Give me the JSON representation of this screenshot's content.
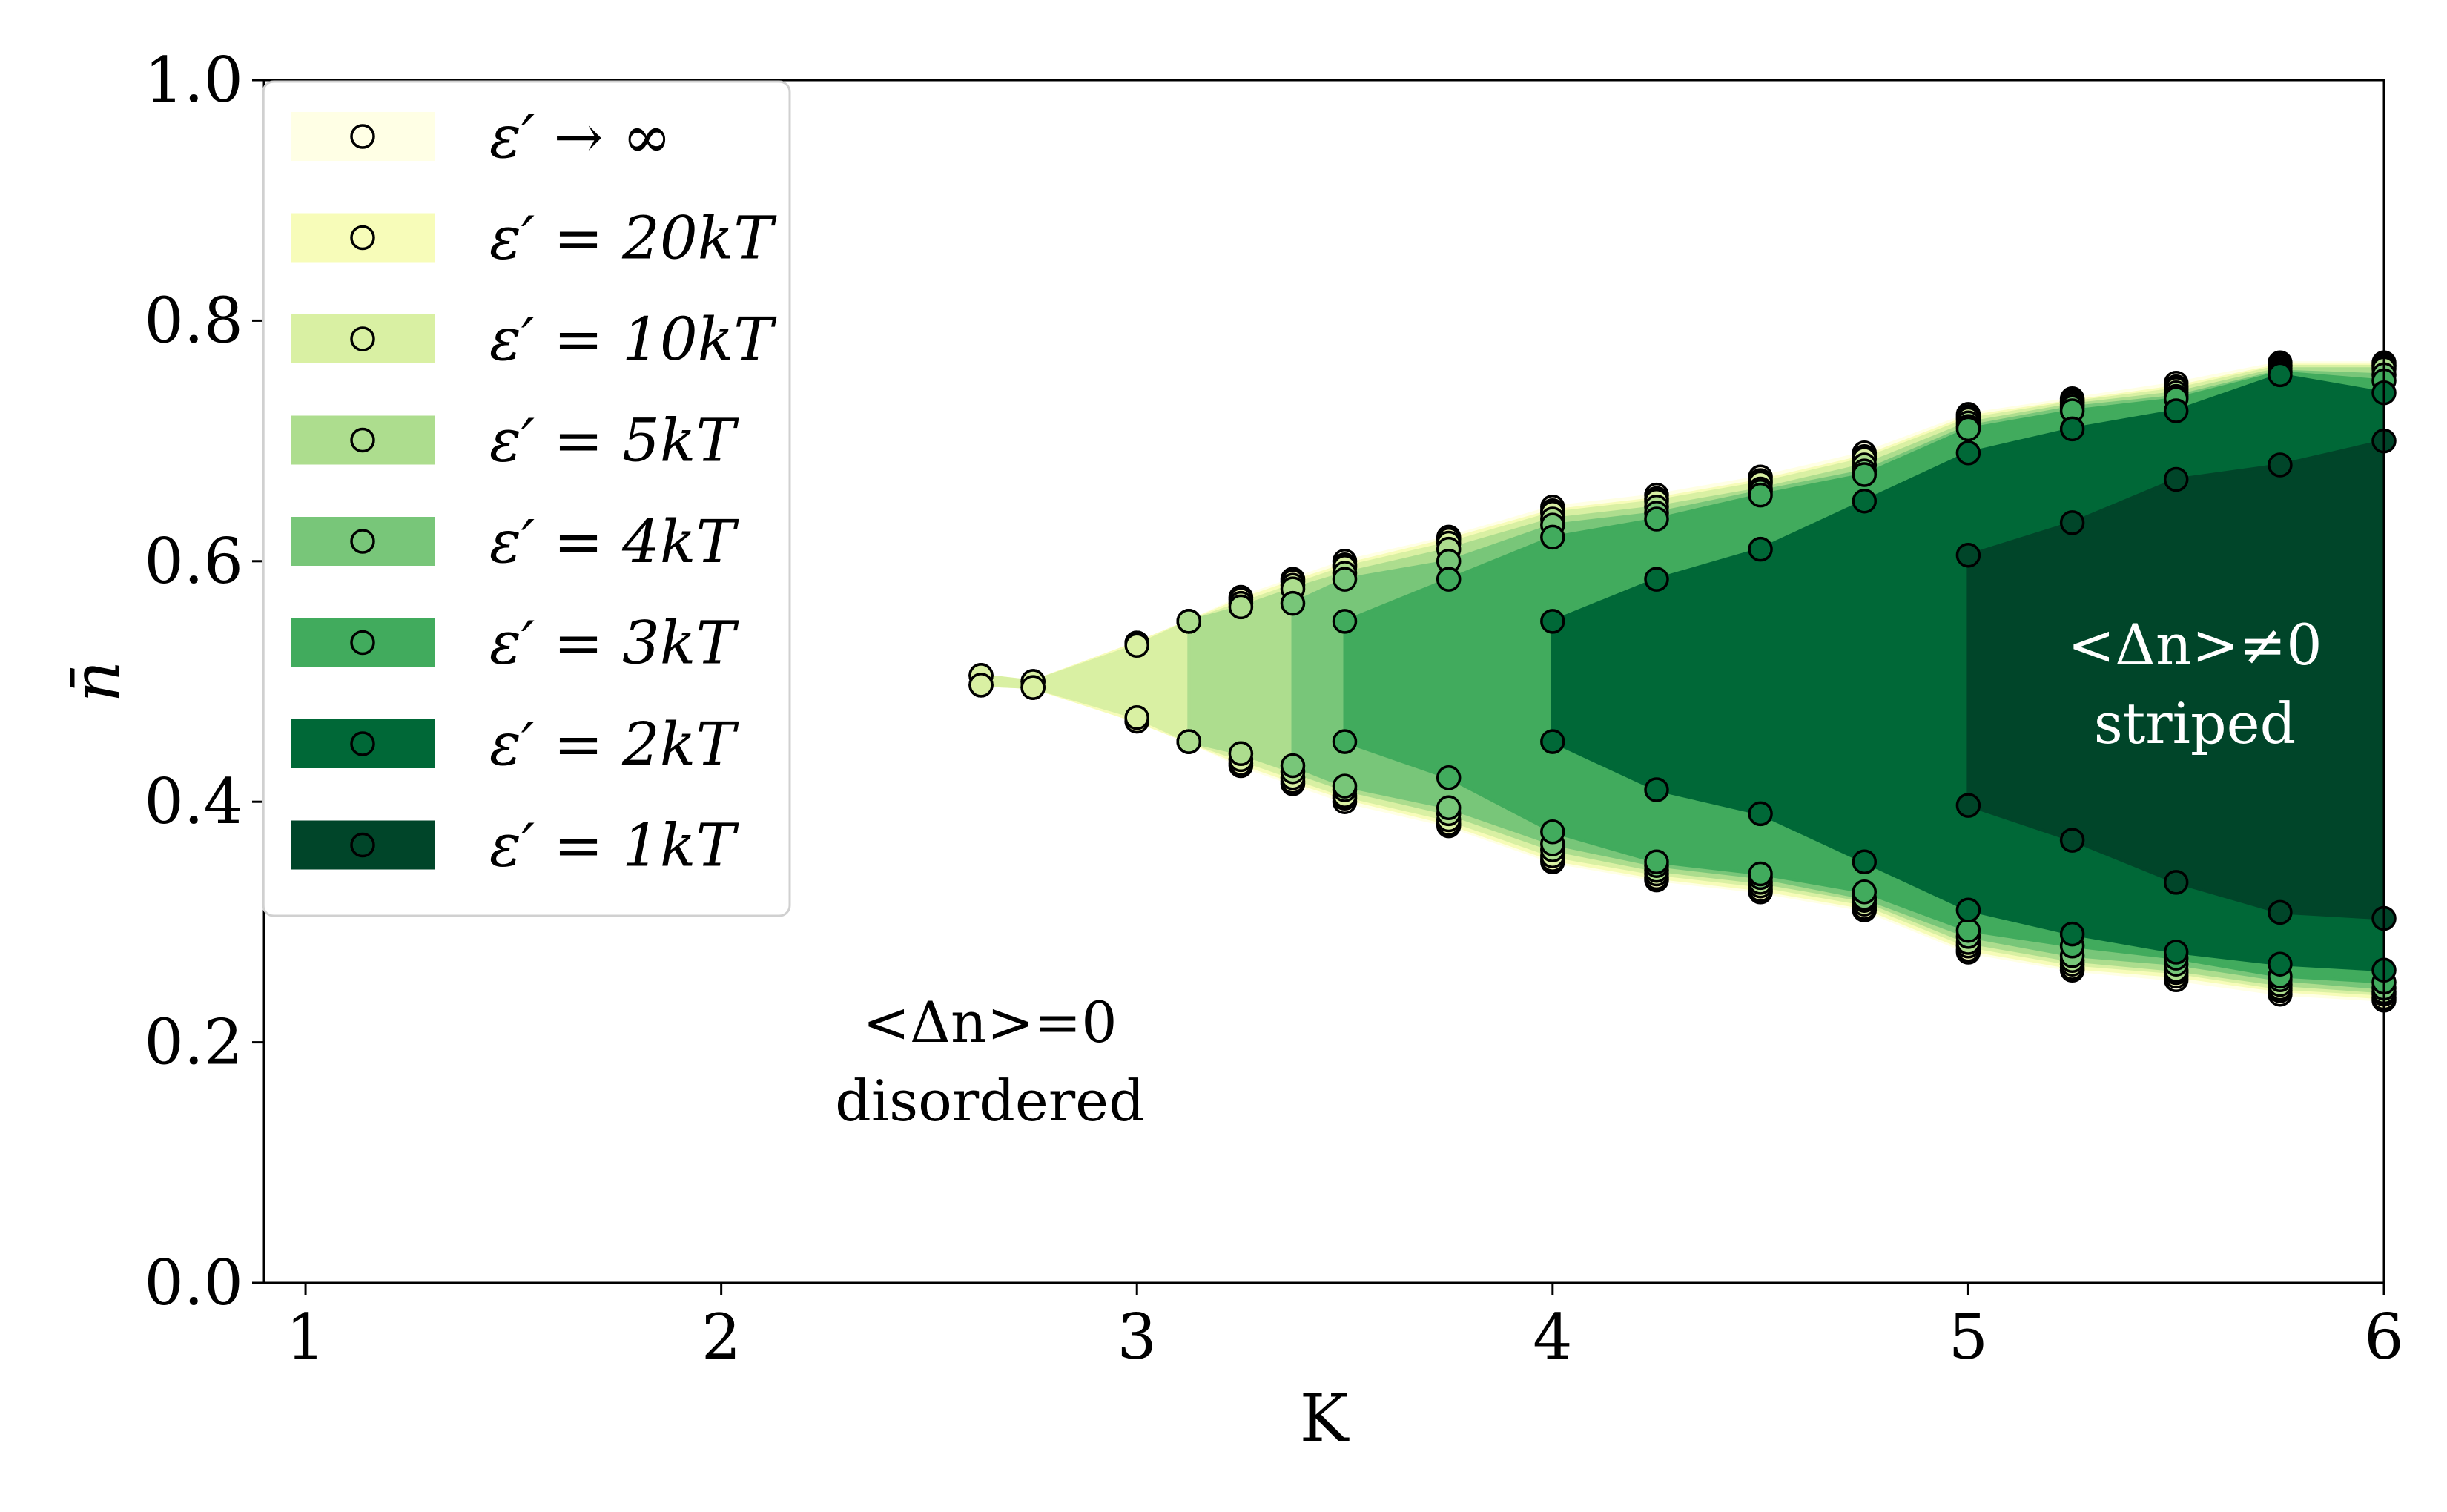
{
  "chart_data": {
    "type": "area",
    "xlabel": "K",
    "ylabel": "n̄",
    "xlim": [
      0.9,
      6
    ],
    "ylim": [
      0,
      1
    ],
    "xticks": [
      "1",
      "2",
      "3",
      "4",
      "5",
      "6"
    ],
    "yticks": [
      "0.0",
      "0.2",
      "0.4",
      "0.6",
      "0.8",
      "1.0"
    ],
    "legend_position": "upper-left",
    "grid": false,
    "annotations": [
      {
        "id": "disordered",
        "lines": [
          "<Δn>=0",
          "disordered"
        ],
        "color": "#000000"
      },
      {
        "id": "striped",
        "lines": [
          "<Δn>≠0",
          "striped"
        ],
        "color": "#ffffff"
      }
    ],
    "series": [
      {
        "name": "ε′ → ∞",
        "color": "#ffffe5",
        "upper": [
          [
            2.625,
            0.505
          ],
          [
            2.75,
            0.5
          ],
          [
            3,
            0.532
          ],
          [
            3.125,
            0.55
          ],
          [
            3.25,
            0.57
          ],
          [
            3.375,
            0.585
          ],
          [
            3.5,
            0.6
          ],
          [
            3.75,
            0.62
          ],
          [
            4,
            0.645
          ],
          [
            4.25,
            0.655
          ],
          [
            4.5,
            0.67
          ],
          [
            4.75,
            0.69
          ],
          [
            5,
            0.722
          ],
          [
            5.25,
            0.735
          ],
          [
            5.5,
            0.748
          ],
          [
            5.75,
            0.765
          ],
          [
            6,
            0.765
          ]
        ],
        "lower": [
          [
            6,
            0.235
          ],
          [
            5.75,
            0.24
          ],
          [
            5.5,
            0.252
          ],
          [
            5.25,
            0.26
          ],
          [
            5,
            0.275
          ],
          [
            4.75,
            0.31
          ],
          [
            4.5,
            0.325
          ],
          [
            4.25,
            0.335
          ],
          [
            4,
            0.35
          ],
          [
            3.75,
            0.38
          ],
          [
            3.5,
            0.4
          ],
          [
            3.375,
            0.415
          ],
          [
            3.25,
            0.43
          ],
          [
            3.125,
            0.45
          ],
          [
            3,
            0.467
          ],
          [
            2.75,
            0.495
          ],
          [
            2.625,
            0.497
          ]
        ]
      },
      {
        "name": "ε′ = 20kT",
        "color": "#f7fcb9",
        "upper": [
          [
            2.625,
            0.505
          ],
          [
            2.75,
            0.5
          ],
          [
            3,
            0.532
          ],
          [
            3.125,
            0.55
          ],
          [
            3.25,
            0.568
          ],
          [
            3.375,
            0.583
          ],
          [
            3.5,
            0.597
          ],
          [
            3.75,
            0.618
          ],
          [
            4,
            0.642
          ],
          [
            4.25,
            0.652
          ],
          [
            4.5,
            0.667
          ],
          [
            4.75,
            0.687
          ],
          [
            5,
            0.72
          ],
          [
            5.25,
            0.733
          ],
          [
            5.5,
            0.745
          ],
          [
            5.75,
            0.763
          ],
          [
            6,
            0.763
          ]
        ],
        "lower": [
          [
            6,
            0.237
          ],
          [
            5.75,
            0.243
          ],
          [
            5.5,
            0.255
          ],
          [
            5.25,
            0.262
          ],
          [
            5,
            0.277
          ],
          [
            4.75,
            0.312
          ],
          [
            4.5,
            0.327
          ],
          [
            4.25,
            0.337
          ],
          [
            4,
            0.352
          ],
          [
            3.75,
            0.382
          ],
          [
            3.5,
            0.403
          ],
          [
            3.375,
            0.417
          ],
          [
            3.25,
            0.432
          ],
          [
            3.125,
            0.45
          ],
          [
            3,
            0.467
          ],
          [
            2.75,
            0.495
          ],
          [
            2.625,
            0.497
          ]
        ]
      },
      {
        "name": "ε′ = 10kT",
        "color": "#d9f0a3",
        "upper": [
          [
            2.625,
            0.505
          ],
          [
            2.75,
            0.5
          ],
          [
            3,
            0.53
          ],
          [
            3.125,
            0.55
          ],
          [
            3.25,
            0.565
          ],
          [
            3.375,
            0.58
          ],
          [
            3.5,
            0.595
          ],
          [
            3.75,
            0.615
          ],
          [
            4,
            0.64
          ],
          [
            4.25,
            0.65
          ],
          [
            4.5,
            0.665
          ],
          [
            4.75,
            0.685
          ],
          [
            5,
            0.718
          ],
          [
            5.25,
            0.732
          ],
          [
            5.5,
            0.743
          ],
          [
            5.75,
            0.762
          ],
          [
            6,
            0.762
          ]
        ],
        "lower": [
          [
            6,
            0.24
          ],
          [
            5.75,
            0.245
          ],
          [
            5.5,
            0.258
          ],
          [
            5.25,
            0.265
          ],
          [
            5,
            0.28
          ],
          [
            4.75,
            0.315
          ],
          [
            4.5,
            0.33
          ],
          [
            4.25,
            0.34
          ],
          [
            4,
            0.355
          ],
          [
            3.75,
            0.385
          ],
          [
            3.5,
            0.405
          ],
          [
            3.375,
            0.42
          ],
          [
            3.25,
            0.435
          ],
          [
            3.125,
            0.45
          ],
          [
            3,
            0.47
          ],
          [
            2.75,
            0.495
          ],
          [
            2.625,
            0.497
          ]
        ]
      },
      {
        "name": "ε′ = 5kT",
        "color": "#addd8e",
        "upper": [
          [
            3.125,
            0.55
          ],
          [
            3.25,
            0.562
          ],
          [
            3.375,
            0.577
          ],
          [
            3.5,
            0.59
          ],
          [
            3.75,
            0.61
          ],
          [
            4,
            0.635
          ],
          [
            4.25,
            0.645
          ],
          [
            4.5,
            0.66
          ],
          [
            4.75,
            0.68
          ],
          [
            5,
            0.715
          ],
          [
            5.25,
            0.73
          ],
          [
            5.5,
            0.74
          ],
          [
            5.75,
            0.76
          ],
          [
            6,
            0.76
          ]
        ],
        "lower": [
          [
            6,
            0.242
          ],
          [
            5.75,
            0.248
          ],
          [
            5.5,
            0.26
          ],
          [
            5.25,
            0.268
          ],
          [
            5,
            0.283
          ],
          [
            4.75,
            0.318
          ],
          [
            4.5,
            0.333
          ],
          [
            4.25,
            0.343
          ],
          [
            4,
            0.36
          ],
          [
            3.75,
            0.39
          ],
          [
            3.5,
            0.41
          ],
          [
            3.375,
            0.425
          ],
          [
            3.25,
            0.44
          ],
          [
            3.125,
            0.45
          ]
        ]
      },
      {
        "name": "ε′ = 4kT",
        "color": "#78c679",
        "upper": [
          [
            3.375,
            0.565
          ],
          [
            3.5,
            0.585
          ],
          [
            3.75,
            0.6
          ],
          [
            4,
            0.63
          ],
          [
            4.25,
            0.64
          ],
          [
            4.5,
            0.658
          ],
          [
            4.75,
            0.675
          ],
          [
            5,
            0.712
          ],
          [
            5.25,
            0.728
          ],
          [
            5.5,
            0.737
          ],
          [
            5.75,
            0.758
          ],
          [
            6,
            0.755
          ]
        ],
        "lower": [
          [
            6,
            0.245
          ],
          [
            5.75,
            0.252
          ],
          [
            5.5,
            0.265
          ],
          [
            5.25,
            0.272
          ],
          [
            5,
            0.288
          ],
          [
            4.75,
            0.32
          ],
          [
            4.5,
            0.337
          ],
          [
            4.25,
            0.347
          ],
          [
            4,
            0.365
          ],
          [
            3.75,
            0.395
          ],
          [
            3.5,
            0.413
          ],
          [
            3.375,
            0.43
          ]
        ]
      },
      {
        "name": "ε′ = 3kT",
        "color": "#41ab5d",
        "upper": [
          [
            3.5,
            0.55
          ],
          [
            3.75,
            0.585
          ],
          [
            4,
            0.62
          ],
          [
            4.25,
            0.635
          ],
          [
            4.5,
            0.655
          ],
          [
            4.75,
            0.672
          ],
          [
            5,
            0.71
          ],
          [
            5.25,
            0.725
          ],
          [
            5.5,
            0.735
          ],
          [
            5.75,
            0.757
          ],
          [
            6,
            0.75
          ]
        ],
        "lower": [
          [
            6,
            0.25
          ],
          [
            5.75,
            0.255
          ],
          [
            5.5,
            0.27
          ],
          [
            5.25,
            0.28
          ],
          [
            5,
            0.293
          ],
          [
            4.75,
            0.325
          ],
          [
            4.5,
            0.34
          ],
          [
            4.25,
            0.35
          ],
          [
            4,
            0.375
          ],
          [
            3.75,
            0.42
          ],
          [
            3.5,
            0.45
          ]
        ]
      },
      {
        "name": "ε′ = 2kT",
        "color": "#006837",
        "upper": [
          [
            4,
            0.55
          ],
          [
            4.25,
            0.585
          ],
          [
            4.5,
            0.61
          ],
          [
            4.75,
            0.65
          ],
          [
            5,
            0.69
          ],
          [
            5.25,
            0.71
          ],
          [
            5.5,
            0.725
          ],
          [
            5.75,
            0.755
          ],
          [
            6,
            0.74
          ]
        ],
        "lower": [
          [
            6,
            0.26
          ],
          [
            5.75,
            0.265
          ],
          [
            5.5,
            0.275
          ],
          [
            5.25,
            0.29
          ],
          [
            5,
            0.31
          ],
          [
            4.75,
            0.35
          ],
          [
            4.5,
            0.39
          ],
          [
            4.25,
            0.41
          ],
          [
            4,
            0.45
          ]
        ]
      },
      {
        "name": "ε′ = 1kT",
        "color": "#004529",
        "upper": [
          [
            5,
            0.605
          ],
          [
            5.25,
            0.632
          ],
          [
            5.5,
            0.668
          ],
          [
            5.75,
            0.68
          ],
          [
            6,
            0.7
          ]
        ],
        "lower": [
          [
            6,
            0.303
          ],
          [
            5.75,
            0.308
          ],
          [
            5.5,
            0.333
          ],
          [
            5.25,
            0.368
          ],
          [
            5,
            0.397
          ]
        ]
      }
    ]
  }
}
